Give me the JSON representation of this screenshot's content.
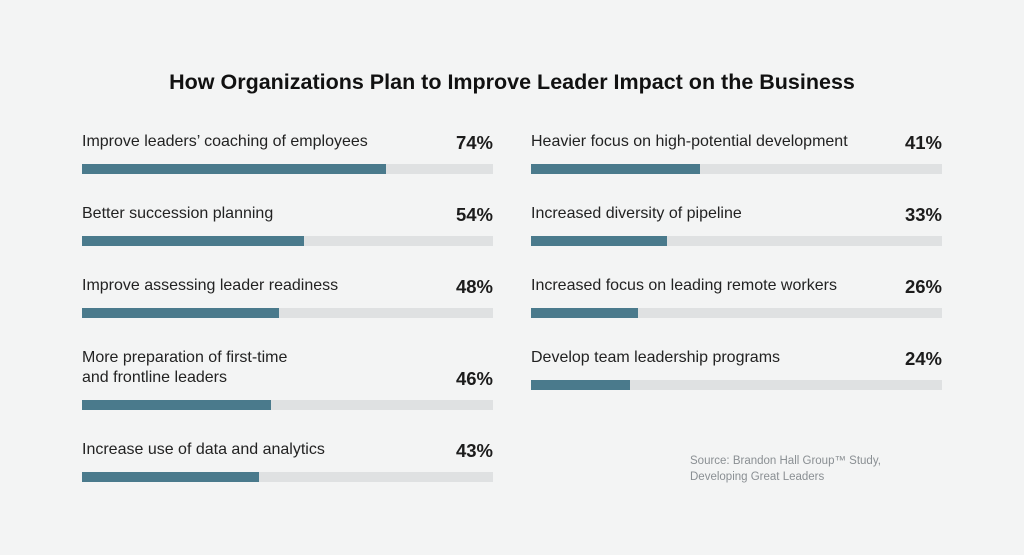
{
  "colors": {
    "background": "#f3f4f4",
    "bar_fill": "#4a7a8c",
    "bar_track": "#dfe1e2"
  },
  "chart_data": {
    "type": "bar",
    "orientation": "horizontal",
    "title": "How Organizations Plan to Improve Leader Impact on the Business",
    "xlabel": "",
    "ylabel": "",
    "xlim": [
      0,
      100
    ],
    "grid": false,
    "columns": [
      {
        "items": [
          {
            "category": "Improve leaders’ coaching of employees",
            "value": 74,
            "label": "74%"
          },
          {
            "category": "Better succession planning",
            "value": 54,
            "label": "54%"
          },
          {
            "category": "Improve assessing leader readiness",
            "value": 48,
            "label": "48%"
          },
          {
            "category": "More preparation of first-time\nand frontline leaders",
            "value": 46,
            "label": "46%"
          },
          {
            "category": "Increase use of data and analytics",
            "value": 43,
            "label": "43%"
          }
        ]
      },
      {
        "items": [
          {
            "category": "Heavier focus on high-potential development",
            "value": 41,
            "label": "41%"
          },
          {
            "category": "Increased diversity of pipeline",
            "value": 33,
            "label": "33%"
          },
          {
            "category": "Increased focus on leading remote workers",
            "value": 26,
            "label": "26%"
          },
          {
            "category": "Develop team leadership programs",
            "value": 24,
            "label": "24%"
          }
        ]
      }
    ],
    "annotations": [
      "Source: Brandon Hall Group™ Study,",
      "Developing Great Leaders"
    ]
  }
}
